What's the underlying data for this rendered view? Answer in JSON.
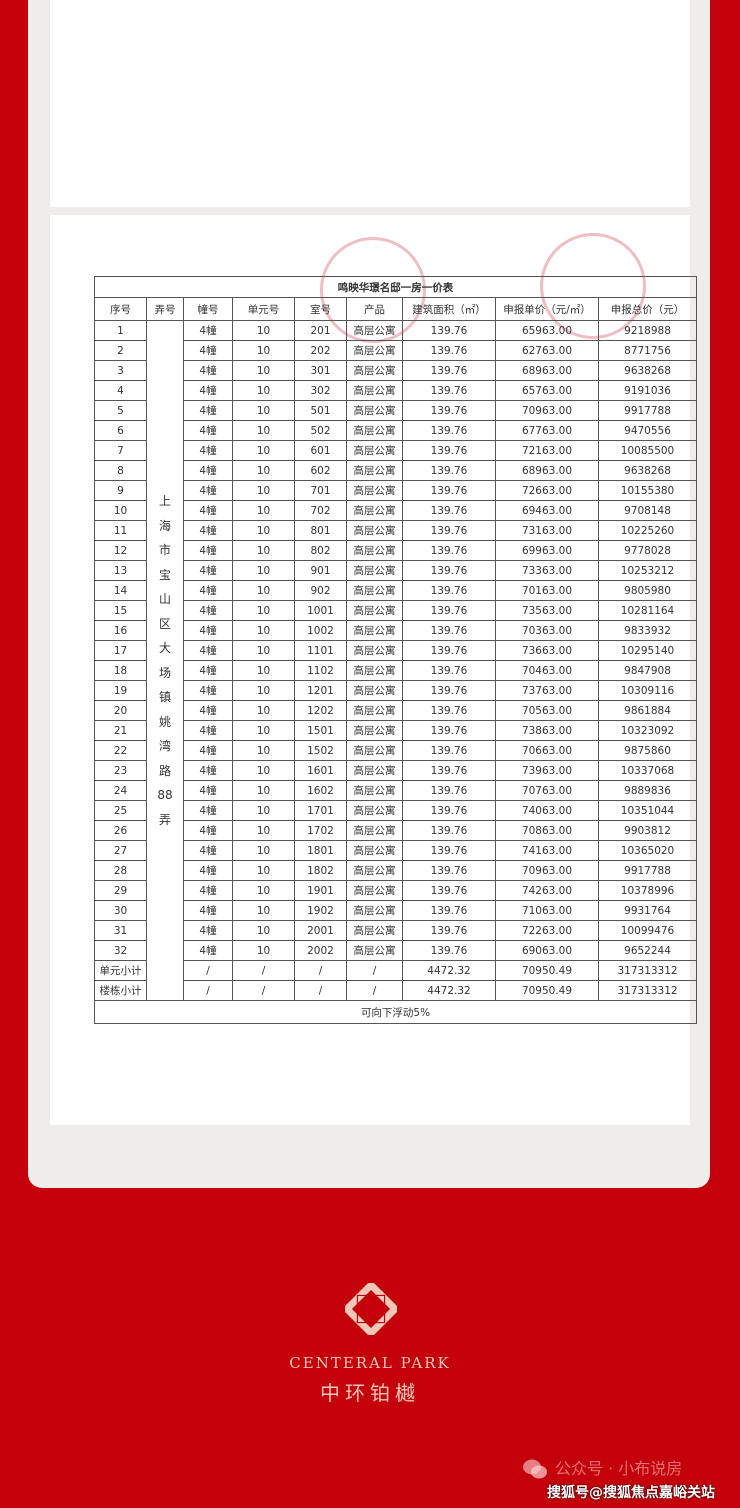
{
  "table": {
    "title": "鸣映华璟名邸一房一价表",
    "headers": [
      "序号",
      "弄号",
      "幢号",
      "单元号",
      "室号",
      "产品",
      "建筑面积（㎡）",
      "申报单价（元/㎡）",
      "申报总价（元）"
    ],
    "address_chars": [
      "上",
      "海",
      "市",
      "宝",
      "山",
      "区",
      "大",
      "场",
      "镇",
      "姚",
      "湾",
      "路",
      "88",
      "弄"
    ],
    "rows": [
      [
        "1",
        "4幢",
        "10",
        "201",
        "高层公寓",
        "139.76",
        "65963.00",
        "9218988"
      ],
      [
        "2",
        "4幢",
        "10",
        "202",
        "高层公寓",
        "139.76",
        "62763.00",
        "8771756"
      ],
      [
        "3",
        "4幢",
        "10",
        "301",
        "高层公寓",
        "139.76",
        "68963.00",
        "9638268"
      ],
      [
        "4",
        "4幢",
        "10",
        "302",
        "高层公寓",
        "139.76",
        "65763.00",
        "9191036"
      ],
      [
        "5",
        "4幢",
        "10",
        "501",
        "高层公寓",
        "139.76",
        "70963.00",
        "9917788"
      ],
      [
        "6",
        "4幢",
        "10",
        "502",
        "高层公寓",
        "139.76",
        "67763.00",
        "9470556"
      ],
      [
        "7",
        "4幢",
        "10",
        "601",
        "高层公寓",
        "139.76",
        "72163.00",
        "10085500"
      ],
      [
        "8",
        "4幢",
        "10",
        "602",
        "高层公寓",
        "139.76",
        "68963.00",
        "9638268"
      ],
      [
        "9",
        "4幢",
        "10",
        "701",
        "高层公寓",
        "139.76",
        "72663.00",
        "10155380"
      ],
      [
        "10",
        "4幢",
        "10",
        "702",
        "高层公寓",
        "139.76",
        "69463.00",
        "9708148"
      ],
      [
        "11",
        "4幢",
        "10",
        "801",
        "高层公寓",
        "139.76",
        "73163.00",
        "10225260"
      ],
      [
        "12",
        "4幢",
        "10",
        "802",
        "高层公寓",
        "139.76",
        "69963.00",
        "9778028"
      ],
      [
        "13",
        "4幢",
        "10",
        "901",
        "高层公寓",
        "139.76",
        "73363.00",
        "10253212"
      ],
      [
        "14",
        "4幢",
        "10",
        "902",
        "高层公寓",
        "139.76",
        "70163.00",
        "9805980"
      ],
      [
        "15",
        "4幢",
        "10",
        "1001",
        "高层公寓",
        "139.76",
        "73563.00",
        "10281164"
      ],
      [
        "16",
        "4幢",
        "10",
        "1002",
        "高层公寓",
        "139.76",
        "70363.00",
        "9833932"
      ],
      [
        "17",
        "4幢",
        "10",
        "1101",
        "高层公寓",
        "139.76",
        "73663.00",
        "10295140"
      ],
      [
        "18",
        "4幢",
        "10",
        "1102",
        "高层公寓",
        "139.76",
        "70463.00",
        "9847908"
      ],
      [
        "19",
        "4幢",
        "10",
        "1201",
        "高层公寓",
        "139.76",
        "73763.00",
        "10309116"
      ],
      [
        "20",
        "4幢",
        "10",
        "1202",
        "高层公寓",
        "139.76",
        "70563.00",
        "9861884"
      ],
      [
        "21",
        "4幢",
        "10",
        "1501",
        "高层公寓",
        "139.76",
        "73863.00",
        "10323092"
      ],
      [
        "22",
        "4幢",
        "10",
        "1502",
        "高层公寓",
        "139.76",
        "70663.00",
        "9875860"
      ],
      [
        "23",
        "4幢",
        "10",
        "1601",
        "高层公寓",
        "139.76",
        "73963.00",
        "10337068"
      ],
      [
        "24",
        "4幢",
        "10",
        "1602",
        "高层公寓",
        "139.76",
        "70763.00",
        "9889836"
      ],
      [
        "25",
        "4幢",
        "10",
        "1701",
        "高层公寓",
        "139.76",
        "74063.00",
        "10351044"
      ],
      [
        "26",
        "4幢",
        "10",
        "1702",
        "高层公寓",
        "139.76",
        "70863.00",
        "9903812"
      ],
      [
        "27",
        "4幢",
        "10",
        "1801",
        "高层公寓",
        "139.76",
        "74163.00",
        "10365020"
      ],
      [
        "28",
        "4幢",
        "10",
        "1802",
        "高层公寓",
        "139.76",
        "70963.00",
        "9917788"
      ],
      [
        "29",
        "4幢",
        "10",
        "1901",
        "高层公寓",
        "139.76",
        "74263.00",
        "10378996"
      ],
      [
        "30",
        "4幢",
        "10",
        "1902",
        "高层公寓",
        "139.76",
        "71063.00",
        "9931764"
      ],
      [
        "31",
        "4幢",
        "10",
        "2001",
        "高层公寓",
        "139.76",
        "72263.00",
        "10099476"
      ],
      [
        "32",
        "4幢",
        "10",
        "2002",
        "高层公寓",
        "139.76",
        "69063.00",
        "9652244"
      ]
    ],
    "subtotals": [
      [
        "单元小计",
        "/",
        "/",
        "/",
        "/",
        "4472.32",
        "70950.49",
        "317313312"
      ],
      [
        "楼栋小计",
        "/",
        "/",
        "/",
        "/",
        "4472.32",
        "70950.49",
        "317313312"
      ]
    ],
    "note": "可向下浮动5%"
  },
  "brand": {
    "english": "CENTERAL PARK",
    "chinese": "中环铂樾"
  },
  "watermarks": {
    "wechat": "公众号 · 小布说房",
    "sohu": "搜狐号@搜狐焦点嘉峪关站"
  },
  "colors": {
    "background": "#c4000b",
    "brand_text": "#f2c7b8"
  }
}
